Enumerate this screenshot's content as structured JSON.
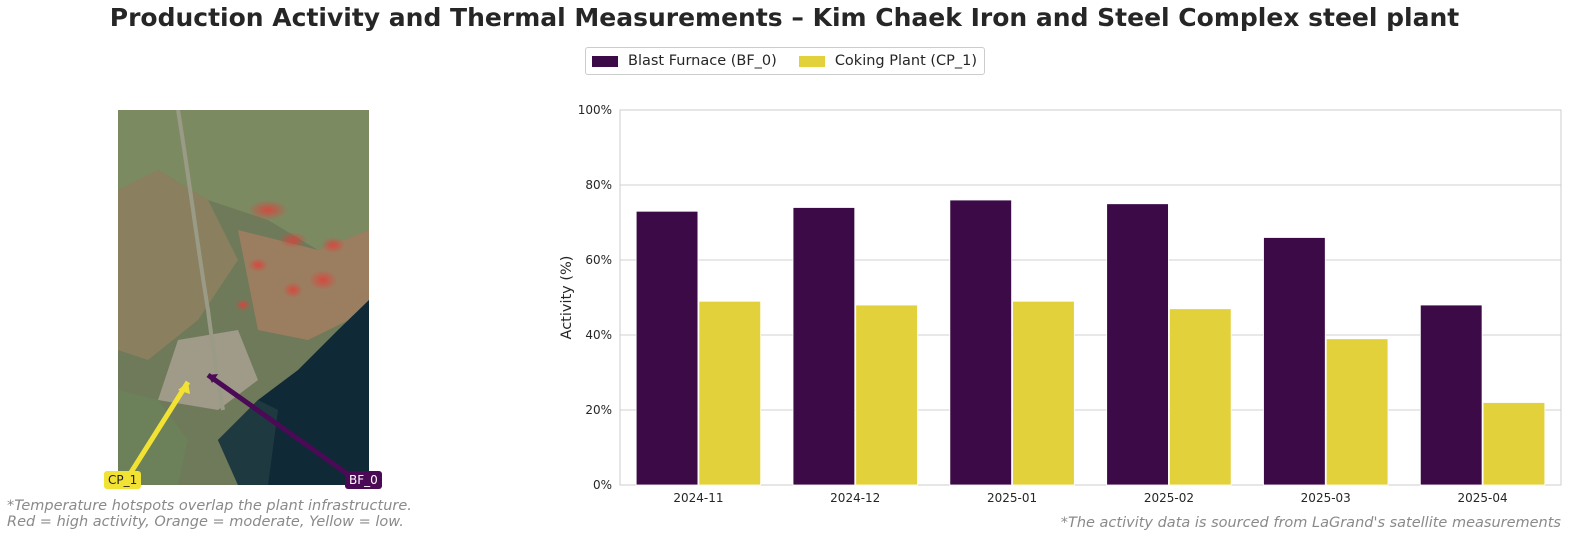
{
  "title": "Production Activity and Thermal Measurements – Kim Chaek Iron and Steel Complex steel plant",
  "legend": {
    "items": [
      {
        "label": "Blast Furnace (BF_0)",
        "color": "#3b0a47"
      },
      {
        "label": "Coking Plant (CP_1)",
        "color": "#e2d13a"
      }
    ],
    "placement": "top-center"
  },
  "map": {
    "labels": [
      {
        "text": "CP_1",
        "color": "#f2e233",
        "text_color": "#222222"
      },
      {
        "text": "BF_0",
        "color": "#4a0a55",
        "text_color": "#ffffff"
      }
    ],
    "note_line1": "*Temperature hotspots overlap the plant infrastructure.",
    "note_line2": "Red = high activity, Orange = moderate, Yellow = low."
  },
  "source_note": "*The activity data is sourced from LaGrand's satellite measurements",
  "chart_data": {
    "type": "bar",
    "categories": [
      "2024-11",
      "2024-12",
      "2025-01",
      "2025-02",
      "2025-03",
      "2025-04"
    ],
    "series": [
      {
        "name": "Blast Furnace (BF_0)",
        "values": [
          73,
          74,
          76,
          75,
          66,
          48
        ],
        "color": "#3b0a47"
      },
      {
        "name": "Coking Plant (CP_1)",
        "values": [
          49,
          48,
          49,
          47,
          39,
          22
        ],
        "color": "#e2d13a"
      }
    ],
    "ylabel": "Activity (%)",
    "xlabel": "",
    "ylim": [
      0,
      100
    ],
    "yticks": [
      "0%",
      "20%",
      "40%",
      "60%",
      "80%",
      "100%"
    ],
    "grid": true
  }
}
